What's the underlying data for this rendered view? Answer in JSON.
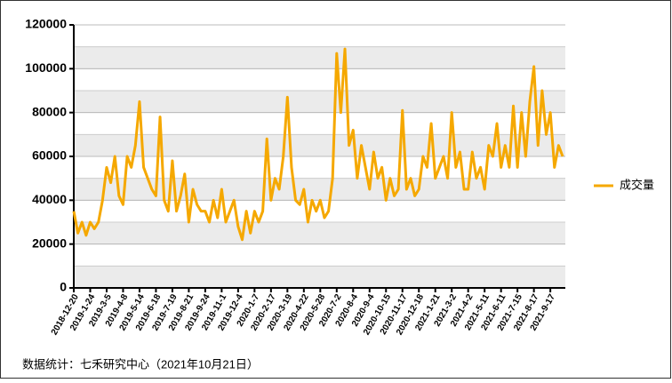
{
  "chart_data": {
    "type": "line",
    "categories": [
      "2018-12-20",
      null,
      null,
      null,
      "2019-1-24",
      null,
      null,
      null,
      "2019-3-5",
      null,
      null,
      null,
      "2019-4-8",
      null,
      null,
      null,
      "2019-5-14",
      null,
      null,
      null,
      "2019-6-18",
      null,
      null,
      null,
      "2019-7-19",
      null,
      null,
      null,
      "2019-8-21",
      null,
      null,
      null,
      "2019-9-24",
      null,
      null,
      null,
      "2019-11-1",
      null,
      null,
      null,
      "2019-12-4",
      null,
      null,
      null,
      "2020-1-7",
      null,
      null,
      null,
      "2020-2-17",
      null,
      null,
      null,
      "2020-3-19",
      null,
      null,
      null,
      "2020-4-22",
      null,
      null,
      null,
      "2020-5-28",
      null,
      null,
      null,
      "2020-7-2",
      null,
      null,
      null,
      "2020-8-4",
      null,
      null,
      null,
      "2020-9-4",
      null,
      null,
      null,
      "2020-10-15",
      null,
      null,
      null,
      "2020-11-17",
      null,
      null,
      null,
      "2020-12-18",
      null,
      null,
      null,
      "2021-1-21",
      null,
      null,
      null,
      "2021-3-2",
      null,
      null,
      null,
      "2021-4-2",
      null,
      null,
      null,
      "2021-5-11",
      null,
      null,
      null,
      "2021-6-11",
      null,
      null,
      null,
      "2021-7-15",
      null,
      null,
      null,
      "2021-8-17",
      null,
      null,
      null,
      "2021-9-17",
      null,
      null,
      null
    ],
    "series": [
      {
        "name": "成交量",
        "color": "#f5a800",
        "values": [
          35000,
          25000,
          30000,
          24000,
          30000,
          27000,
          30000,
          40000,
          55000,
          48000,
          60000,
          42000,
          38000,
          60000,
          55000,
          65000,
          85000,
          55000,
          50000,
          45000,
          42000,
          78000,
          40000,
          35000,
          58000,
          35000,
          42000,
          52000,
          30000,
          45000,
          38000,
          35000,
          35000,
          30000,
          40000,
          32000,
          45000,
          30000,
          35000,
          40000,
          28000,
          22000,
          35000,
          25000,
          35000,
          30000,
          35000,
          68000,
          40000,
          50000,
          45000,
          60000,
          87000,
          55000,
          40000,
          38000,
          45000,
          30000,
          40000,
          35000,
          40000,
          32000,
          35000,
          50000,
          107000,
          80000,
          109000,
          65000,
          72000,
          50000,
          65000,
          55000,
          45000,
          62000,
          50000,
          55000,
          40000,
          50000,
          42000,
          45000,
          81000,
          45000,
          50000,
          42000,
          45000,
          60000,
          55000,
          75000,
          50000,
          55000,
          60000,
          50000,
          80000,
          55000,
          62000,
          45000,
          45000,
          62000,
          50000,
          55000,
          45000,
          65000,
          60000,
          75000,
          55000,
          65000,
          55000,
          83000,
          55000,
          80000,
          60000,
          85000,
          101000,
          65000,
          90000,
          70000,
          80000,
          55000,
          65000,
          60000
        ]
      }
    ],
    "ylim": [
      0,
      120000
    ],
    "yticks": [
      0,
      20000,
      40000,
      60000,
      80000,
      100000,
      120000
    ],
    "legend": "right",
    "source": "数据统计：七禾研究中心（2021年10月21日）"
  }
}
